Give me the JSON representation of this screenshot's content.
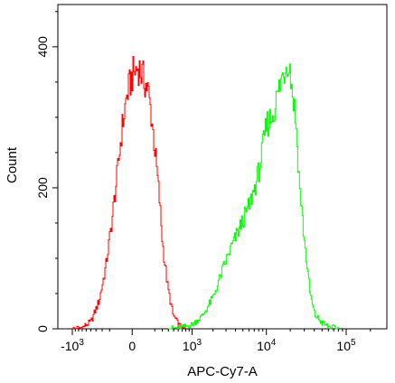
{
  "chart_data": {
    "type": "line",
    "chart_subtype": "flow-cytometry-histogram",
    "xlabel": "APC-Cy7-A",
    "ylabel": "Count",
    "x_scale": "biexponential",
    "x_ticks": [
      {
        "value": -1000,
        "base": "-10",
        "exp": "3"
      },
      {
        "value": 0,
        "base": "0",
        "exp": ""
      },
      {
        "value": 1000,
        "base": "10",
        "exp": "3"
      },
      {
        "value": 10000,
        "base": "10",
        "exp": "4"
      },
      {
        "value": 100000,
        "base": "10",
        "exp": "5"
      }
    ],
    "y_ticks": [
      "0",
      "200",
      "400"
    ],
    "ylim": [
      0,
      460
    ],
    "grid": false,
    "series": [
      {
        "color": "#ff0000",
        "x": [
          -1000,
          -700,
          -500,
          -350,
          -250,
          -180,
          -120,
          -80,
          -40,
          0,
          40,
          80,
          120,
          160,
          200,
          250,
          300,
          380,
          480,
          600,
          700,
          800
        ],
        "y": [
          0,
          2,
          10,
          40,
          90,
          150,
          220,
          280,
          330,
          360,
          372,
          355,
          340,
          300,
          250,
          190,
          120,
          60,
          20,
          6,
          1,
          0
        ]
      },
      {
        "color": "#00ff00",
        "x": [
          400,
          700,
          1000,
          1400,
          2000,
          2600,
          3300,
          4000,
          5000,
          6000,
          7000,
          8000,
          9000,
          10000,
          11500,
          13000,
          15000,
          17000,
          18500,
          20000,
          23000,
          26000,
          30000,
          35000,
          40000,
          50000,
          60000,
          80000
        ],
        "y": [
          0,
          2,
          6,
          18,
          45,
          80,
          110,
          130,
          155,
          175,
          200,
          225,
          260,
          290,
          300,
          320,
          350,
          370,
          385,
          360,
          300,
          200,
          120,
          50,
          20,
          8,
          3,
          0
        ]
      }
    ]
  }
}
